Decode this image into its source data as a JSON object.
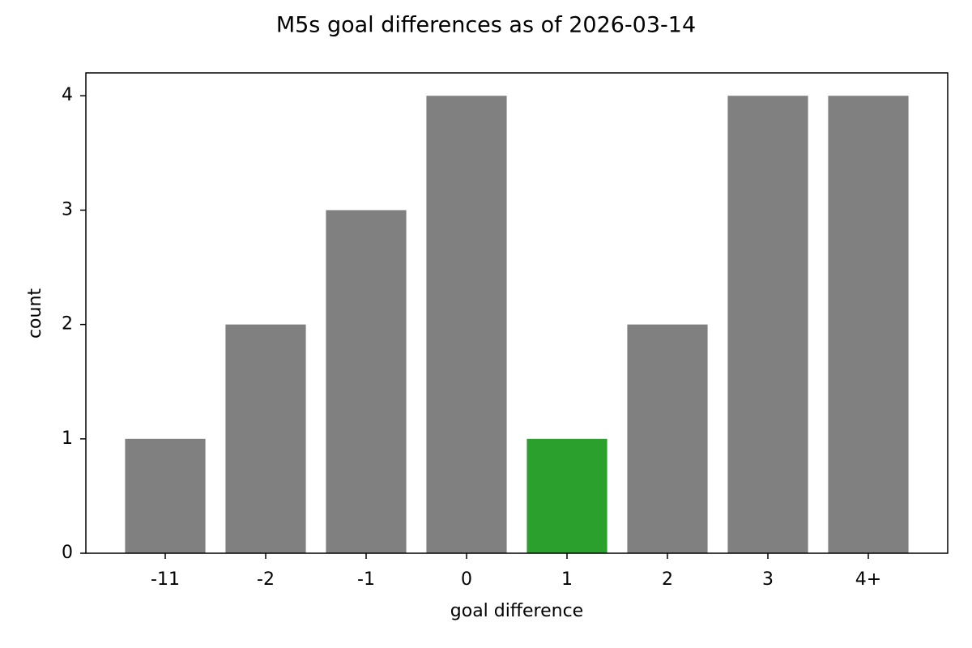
{
  "chart_data": {
    "type": "bar",
    "title": "M5s goal differences as of 2026-03-14",
    "x_label": "goal difference",
    "y_label": "count",
    "categories": [
      "-11",
      "-2",
      "-1",
      "0",
      "1",
      "2",
      "3",
      "4+"
    ],
    "values": [
      1,
      2,
      3,
      4,
      1,
      2,
      4,
      4
    ],
    "colors": [
      "#808080",
      "#808080",
      "#808080",
      "#808080",
      "#2ca02c",
      "#808080",
      "#808080",
      "#808080"
    ],
    "ylim": [
      0,
      4.2
    ],
    "yticks": [
      0,
      1,
      2,
      3,
      4
    ],
    "grid": false
  }
}
